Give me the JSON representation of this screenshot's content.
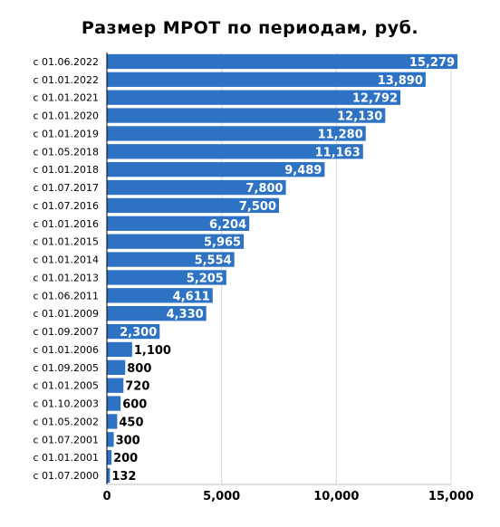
{
  "chart_data": {
    "type": "bar",
    "orientation": "horizontal",
    "title": "Размер МРОТ по периодам, руб.",
    "categories": [
      "с 01.06.2022",
      "с 01.01.2022",
      "с 01.01.2021",
      "с 01.01.2020",
      "с 01.01.2019",
      "с 01.05.2018",
      "с 01.01.2018",
      "с 01.07.2017",
      "с 01.07.2016",
      "с 01.01.2016",
      "с 01.01.2015",
      "с 01.01.2014",
      "с 01.01.2013",
      "с 01.06.2011",
      "с 01.01.2009",
      "с 01.09.2007",
      "с 01.01.2006",
      "с 01.09.2005",
      "с 01.01.2005",
      "с 01.10.2003",
      "с 01.05.2002",
      "с 01.07.2001",
      "с 01.01.2001",
      "с 01.07.2000"
    ],
    "values": [
      15279,
      13890,
      12792,
      12130,
      11280,
      11163,
      9489,
      7800,
      7500,
      6204,
      5965,
      5554,
      5205,
      4611,
      4330,
      2300,
      1100,
      800,
      720,
      600,
      450,
      300,
      200,
      132
    ],
    "value_labels": [
      "15,279",
      "13,890",
      "12,792",
      "12,130",
      "11,280",
      "11,163",
      "9,489",
      "7,800",
      "7,500",
      "6,204",
      "5,965",
      "5,554",
      "5,205",
      "4,611",
      "4,330",
      "2,300",
      "1,100",
      "800",
      "720",
      "600",
      "450",
      "300",
      "200",
      "132"
    ],
    "xlim": [
      0,
      15000
    ],
    "xticks": [
      0,
      5000,
      10000,
      15000
    ],
    "xtick_labels": [
      "0",
      "5,000",
      "10,000",
      "15,000"
    ],
    "xlabel": "",
    "ylabel": "",
    "grid": "vertical",
    "bar_color": "#2e72c4"
  }
}
